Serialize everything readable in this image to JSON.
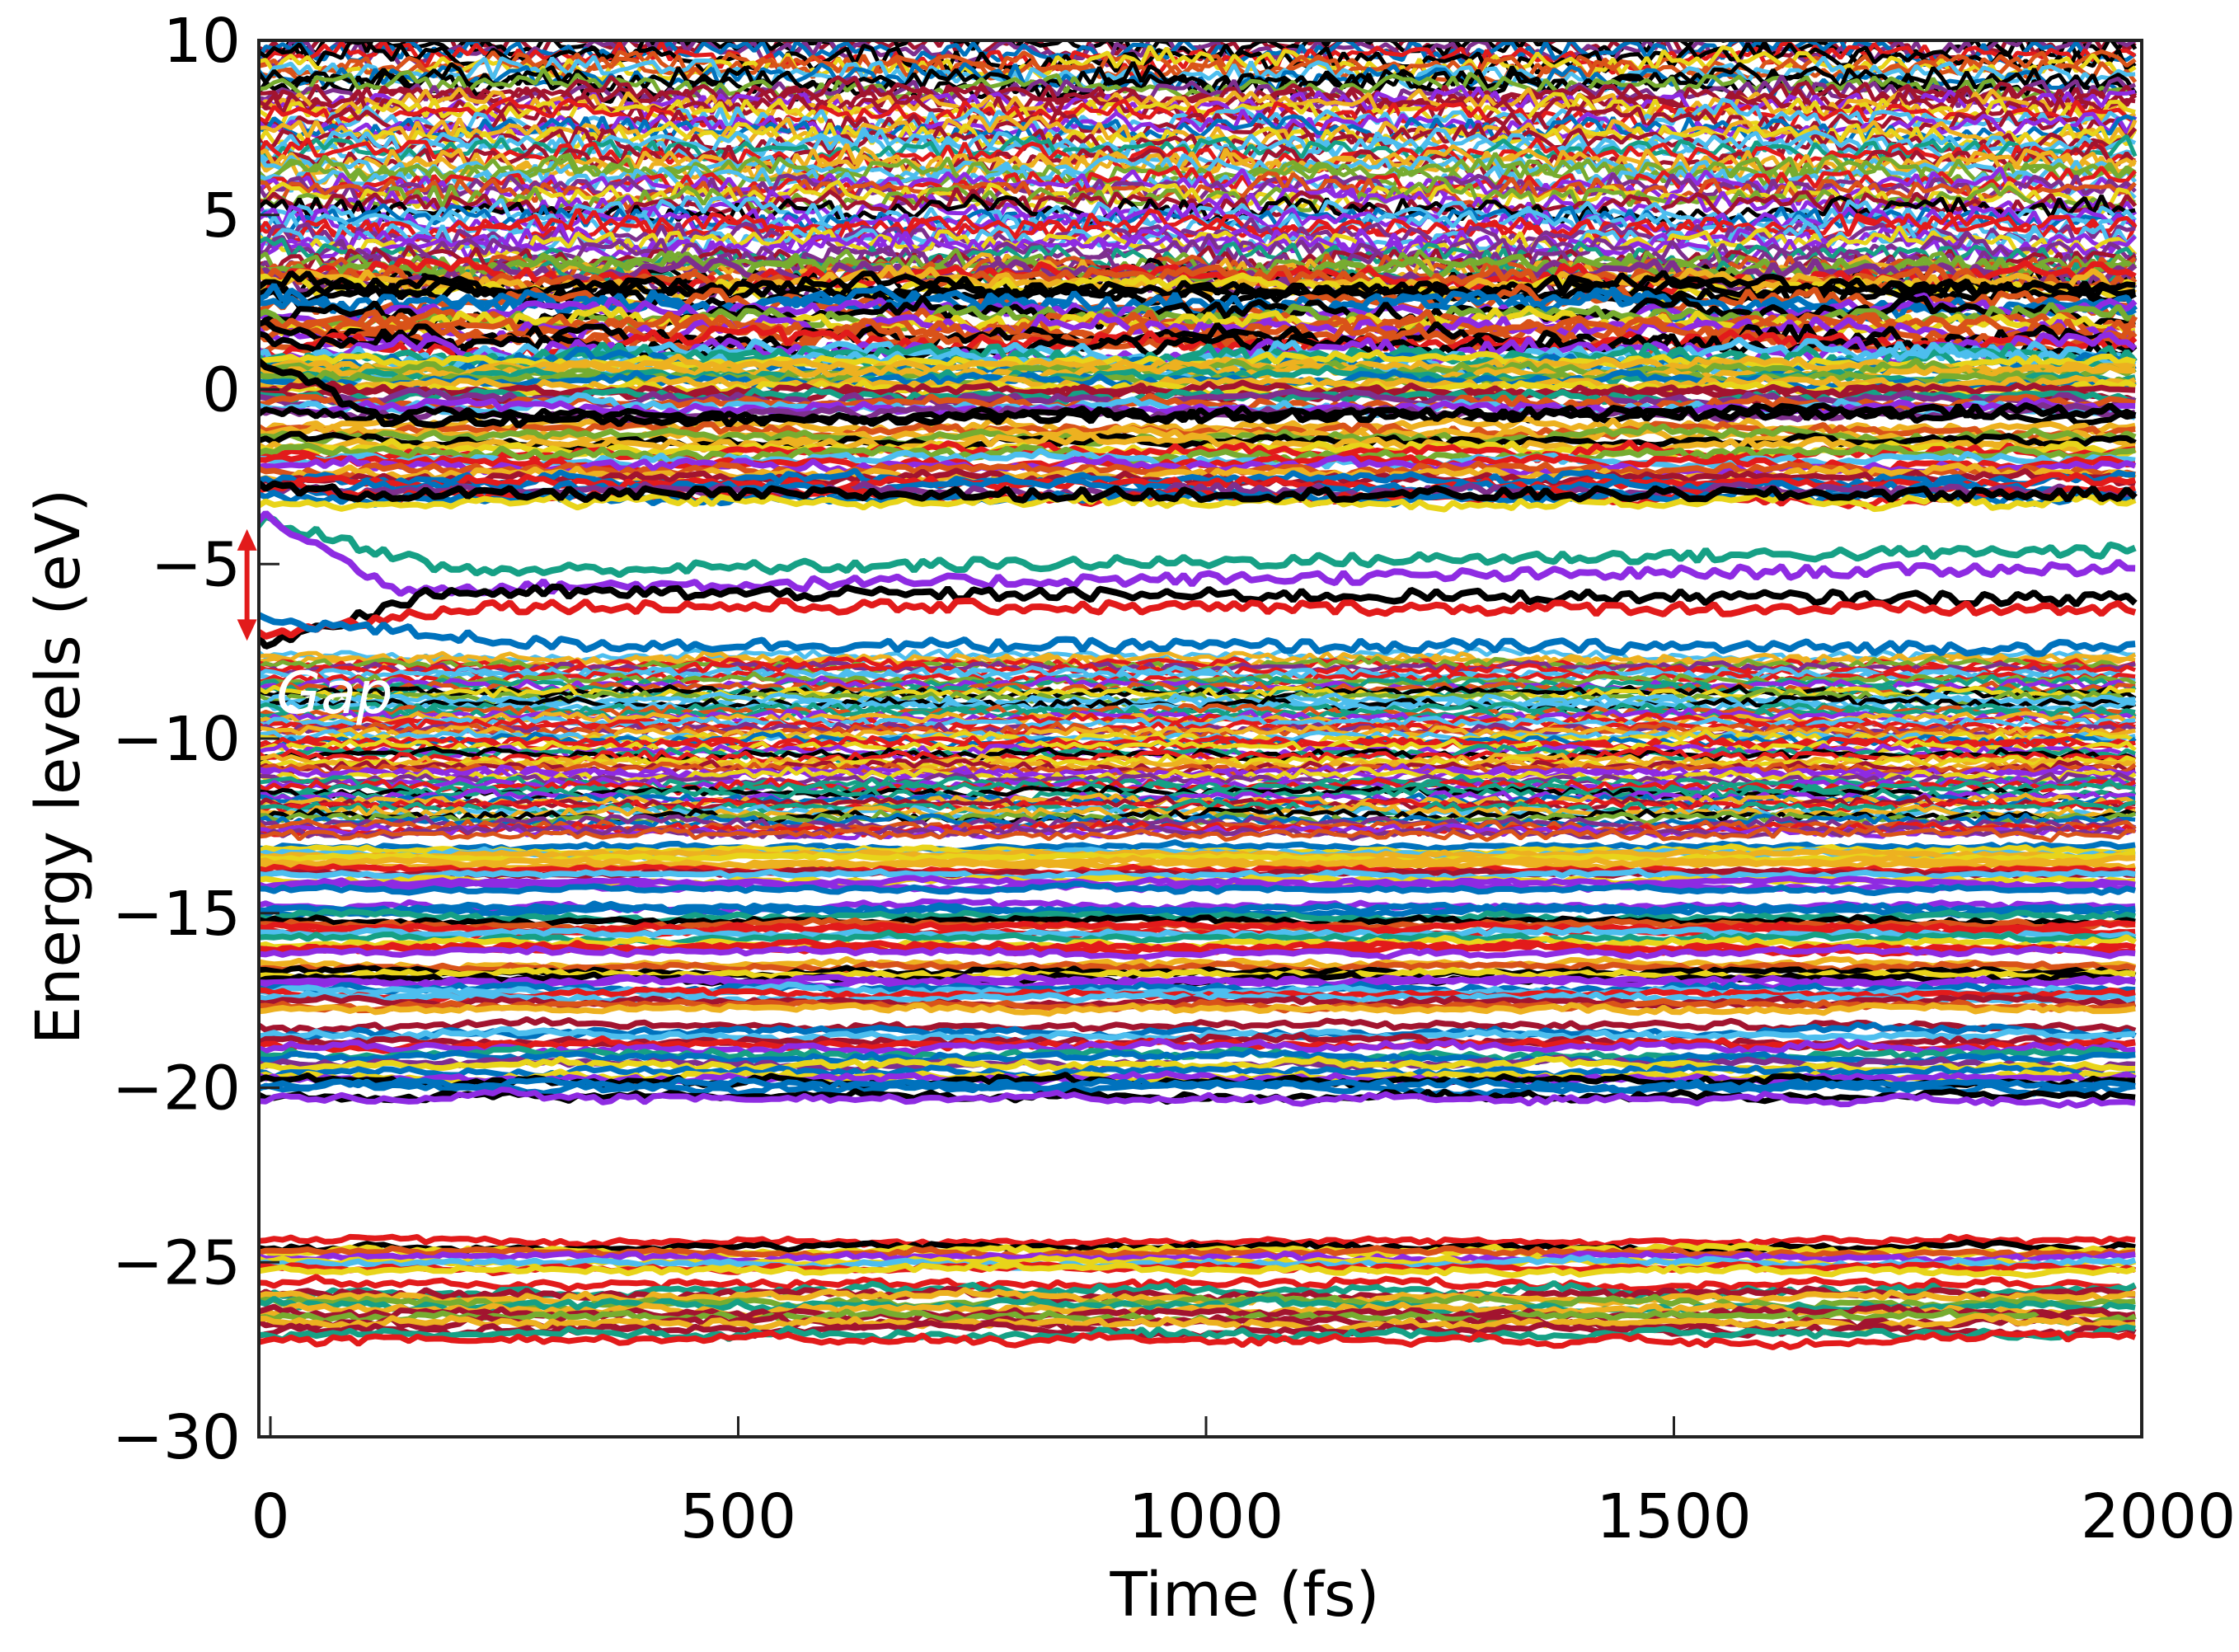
{
  "chart_data": {
    "type": "line",
    "title": "",
    "xlabel": "Time (fs)",
    "ylabel": "Energy levels (eV)",
    "xlim": [
      -50,
      2000
    ],
    "ylim": [
      -30,
      10
    ],
    "xticks": [
      0,
      500,
      1000,
      1500,
      2000
    ],
    "xtick_labels": [
      "0",
      "500",
      "1000",
      "1500",
      "2000"
    ],
    "yticks": [
      10,
      5,
      0,
      -5,
      -10,
      -15,
      -20,
      -25,
      -30
    ],
    "ytick_labels": [
      "10",
      "5",
      "0",
      "−5",
      "−10",
      "−15",
      "−20",
      "−25",
      "−30"
    ],
    "grid": false,
    "legend": null,
    "series_colors": [
      "#0072BD",
      "#D95319",
      "#EDB120",
      "#7E2F8E",
      "#77AC30",
      "#4DBEEE",
      "#A2142F",
      "#000000",
      "#E8D41A",
      "#16A085",
      "#8E2BE2",
      "#E21B1B"
    ],
    "description": "Time evolution of many Kohn-Sham energy levels (hundreds of traces) over a 2000 fs molecular dynamics trajectory; dense continuum above ~2 eV and between -7.5 and -12 eV; isolated states open a band gap near -3.5 to -7.3 eV that narrows after ~200 fs.",
    "bands": [
      {
        "name": "conduction-continuum",
        "y_start": 10.0,
        "y_end": 3.0,
        "count": 70,
        "noise": 0.35,
        "dense": true
      },
      {
        "name": "upper-states-spread",
        "y_start": 3.5,
        "y_end": 0.6,
        "count": 30,
        "noise": 0.45
      },
      {
        "name": "near-zero-cluster",
        "y_start": 0.8,
        "y_end": -0.8,
        "count": 18,
        "noise": 0.25
      },
      {
        "name": "minus-1-to-3-cluster",
        "y_start": -1.0,
        "y_end": -3.3,
        "count": 22,
        "noise": 0.25
      },
      {
        "name": "valence-continuum",
        "y_start": -7.6,
        "y_end": -12.8,
        "count": 75,
        "noise": 0.15,
        "dense": true
      },
      {
        "name": "band-13",
        "y_start": -13.0,
        "y_end": -14.4,
        "count": 14,
        "noise": 0.12
      },
      {
        "name": "band-15",
        "y_start": -14.7,
        "y_end": -16.2,
        "count": 14,
        "noise": 0.15
      },
      {
        "name": "band-17",
        "y_start": -16.4,
        "y_end": -17.8,
        "count": 14,
        "noise": 0.15
      },
      {
        "name": "band-19",
        "y_start": -18.2,
        "y_end": -20.4,
        "count": 18,
        "noise": 0.18
      },
      {
        "name": "band-25a",
        "y_start": -24.4,
        "y_end": -25.3,
        "count": 9,
        "noise": 0.15
      },
      {
        "name": "band-26",
        "y_start": -25.6,
        "y_end": -27.2,
        "count": 14,
        "noise": 0.2
      }
    ],
    "highlighted_traces": [
      {
        "name": "gap-state-green",
        "color": "#16A085",
        "start": -3.8,
        "settle": -5.2,
        "end": -4.6,
        "settle_time": 200
      },
      {
        "name": "gap-state-purple",
        "color": "#8E2BE2",
        "start": -3.7,
        "settle": -5.7,
        "end": -5.1,
        "settle_time": 130
      },
      {
        "name": "gap-state-black",
        "color": "#000000",
        "start": -7.2,
        "settle": -5.8,
        "end": -6.0,
        "settle_time": 180
      },
      {
        "name": "gap-state-red",
        "color": "#E21B1B",
        "start": -7.0,
        "settle": -6.2,
        "end": -6.3,
        "settle_time": 220
      },
      {
        "name": "gap-state-blue",
        "color": "#0072BD",
        "start": -6.6,
        "settle": -7.3,
        "end": -7.4,
        "settle_time": 300
      },
      {
        "name": "conduction-black-low",
        "color": "#000000",
        "start": -2.8,
        "settle": -3.0,
        "end": -3.0,
        "settle_time": 100
      },
      {
        "name": "conduction-black-high",
        "color": "#000000",
        "start": 0.8,
        "settle": -0.9,
        "end": -0.6,
        "settle_time": 120
      }
    ],
    "annotations": [
      {
        "type": "double-arrow",
        "color": "#E21B1B",
        "x": -25,
        "y_top": -4.0,
        "y_bottom": -7.2
      },
      {
        "type": "text",
        "text": "Gap",
        "style": "italic",
        "color": "#ffffff",
        "x": -30,
        "y": -8.8
      }
    ]
  },
  "axes": {
    "x_label": "Time (fs)",
    "y_label": "Energy levels (eV)"
  },
  "annotation": {
    "gap_text": "Gap"
  }
}
